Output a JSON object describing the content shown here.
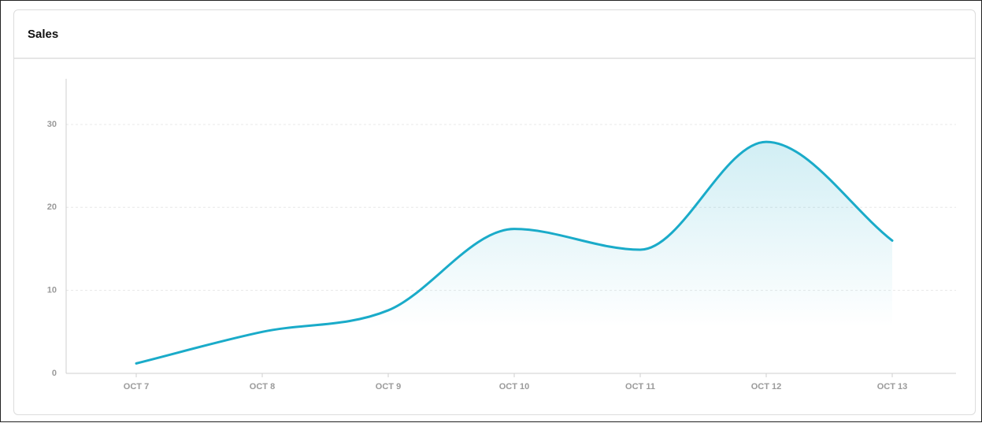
{
  "chart_data": {
    "type": "area",
    "title": "Sales",
    "categories": [
      "OCT 7",
      "OCT 8",
      "OCT 9",
      "OCT 10",
      "OCT 11",
      "OCT 12",
      "OCT 13"
    ],
    "values": [
      1.2,
      5.0,
      7.6,
      17.4,
      14.9,
      27.9,
      16.0
    ],
    "color": "#1aabc9",
    "ylim": [
      0,
      35.5
    ],
    "yticks": [
      0,
      10,
      20,
      30
    ],
    "grid": true
  }
}
